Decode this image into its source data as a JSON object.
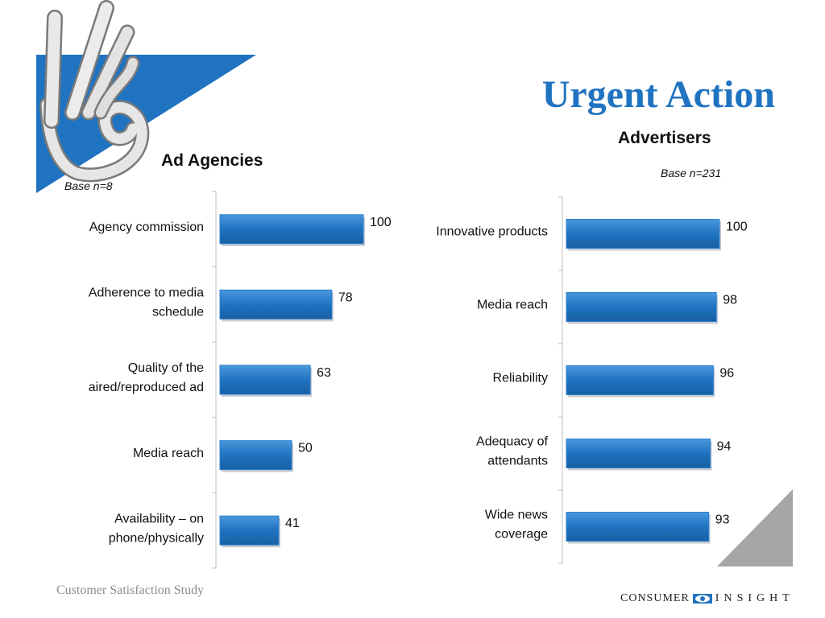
{
  "slide": {
    "title": "Urgent Action",
    "footer": "Customer Satisfaction Study",
    "brand": {
      "word1": "CONSUMER",
      "word2": "INSIGHT"
    },
    "colors": {
      "title": "#1f73c1",
      "bar": "#1f73c1",
      "triangle": "#1f73c1",
      "corner_triangle": "#a6a6a6",
      "footer": "#8c8c8c"
    },
    "icons": {
      "hand": "ok-hand-gesture",
      "brand_mark": "eye-icon"
    }
  },
  "chart_data": [
    {
      "type": "bar",
      "orientation": "horizontal",
      "title": "Ad Agencies",
      "note": "Base n=8",
      "categories": [
        "Agency commission",
        "Adherence to media schedule",
        "Quality of the aired/reproduced ad",
        "Media reach",
        "Availability – on phone/physically"
      ],
      "category_lines": [
        [
          "Agency commission"
        ],
        [
          "Adherence to media",
          "schedule"
        ],
        [
          "Quality of the",
          "aired/reproduced ad"
        ],
        [
          "Media reach"
        ],
        [
          "Availability – on",
          "phone/physically"
        ]
      ],
      "values": [
        100,
        78,
        63,
        50,
        41
      ],
      "data_labels": true,
      "xlim": [
        0,
        100
      ],
      "grid": false
    },
    {
      "type": "bar",
      "orientation": "horizontal",
      "title": "Advertisers",
      "note": "Base n=231",
      "categories": [
        "Innovative products",
        "Media reach",
        "Reliability",
        "Adequacy of attendants",
        "Wide news coverage"
      ],
      "category_lines": [
        [
          "Innovative products"
        ],
        [
          "Media reach"
        ],
        [
          "Reliability"
        ],
        [
          "Adequacy of",
          "attendants"
        ],
        [
          "Wide news",
          "coverage"
        ]
      ],
      "values": [
        100,
        98,
        96,
        94,
        93
      ],
      "data_labels": true,
      "xlim": [
        0,
        100
      ],
      "grid": false
    }
  ]
}
